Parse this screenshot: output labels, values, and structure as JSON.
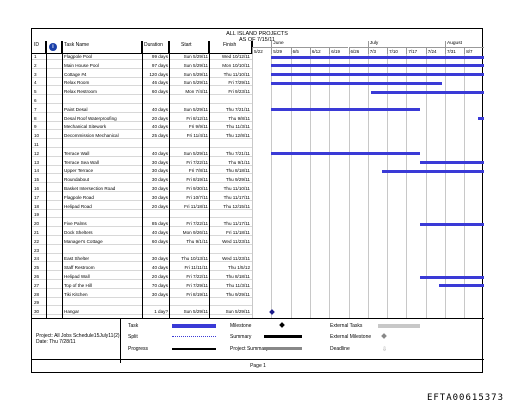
{
  "header": {
    "title": "ALL ISLAND PROJECTS",
    "subtitle": "AS OF 7/15/11"
  },
  "columns": {
    "id": "ID",
    "info": "i",
    "task": "Task Name",
    "duration": "Duration",
    "start": "Start",
    "finish": "Finish"
  },
  "months": [
    "June",
    "July",
    "August"
  ],
  "weeks": [
    "5/22",
    "5/29",
    "6/5",
    "6/12",
    "6/19",
    "6/26",
    "7/3",
    "7/10",
    "7/17",
    "7/24",
    "7/31",
    "8/7"
  ],
  "rows": [
    {
      "id": "1",
      "name": "Flagpole Pool",
      "duration": "99 days",
      "start": "Sun 5/29/11",
      "finish": "Wed 10/12/11"
    },
    {
      "id": "2",
      "name": "Main House Pool",
      "duration": "97 days",
      "start": "Sun 5/29/11",
      "finish": "Mon 10/10/11"
    },
    {
      "id": "3",
      "name": "Cottage #4",
      "duration": "120 days",
      "start": "Sun 5/29/11",
      "finish": "Thu 11/10/11"
    },
    {
      "id": "4",
      "name": "Relax Room",
      "duration": "46 days",
      "start": "Sun 5/29/11",
      "finish": "Fri 7/29/11"
    },
    {
      "id": "5",
      "name": "Relax Restroom",
      "duration": "60 days",
      "start": "Mon 7/4/11",
      "finish": "Fri 9/23/11"
    },
    {
      "id": "6",
      "name": "",
      "duration": "",
      "start": "",
      "finish": ""
    },
    {
      "id": "7",
      "name": "Paint Desal",
      "duration": "40 days",
      "start": "Sun 5/29/11",
      "finish": "Thu 7/21/11"
    },
    {
      "id": "8",
      "name": "Desal Roof Waterproofing",
      "duration": "20 days",
      "start": "Fri 8/12/11",
      "finish": "Thu 9/8/11"
    },
    {
      "id": "9",
      "name": "Mechanical Sitework",
      "duration": "40 days",
      "start": "Fri 9/9/11",
      "finish": "Thu 11/3/11"
    },
    {
      "id": "10",
      "name": "Decommission Mechanical",
      "duration": "25 days",
      "start": "Fri 11/4/11",
      "finish": "Thu 12/8/11"
    },
    {
      "id": "11",
      "name": "",
      "duration": "",
      "start": "",
      "finish": ""
    },
    {
      "id": "12",
      "name": "Terrace Wall",
      "duration": "40 days",
      "start": "Sun 5/29/11",
      "finish": "Thu 7/21/11"
    },
    {
      "id": "13",
      "name": "Terrace Sea Wall",
      "duration": "30 days",
      "start": "Fri 7/22/11",
      "finish": "Thu 9/1/11"
    },
    {
      "id": "14",
      "name": "Upper Terrace",
      "duration": "30 days",
      "start": "Fri 7/8/11",
      "finish": "Thu 8/18/11"
    },
    {
      "id": "15",
      "name": "Roundabout",
      "duration": "30 days",
      "start": "Fri 8/19/11",
      "finish": "Thu 9/29/11"
    },
    {
      "id": "16",
      "name": "Basket Intersection Road",
      "duration": "30 days",
      "start": "Fri 9/30/11",
      "finish": "Thu 11/10/11"
    },
    {
      "id": "17",
      "name": "Flagpole Road",
      "duration": "30 days",
      "start": "Fri 10/7/11",
      "finish": "Thu 11/17/11"
    },
    {
      "id": "18",
      "name": "Helipad Road",
      "duration": "20 days",
      "start": "Fri 11/18/11",
      "finish": "Thu 12/15/11"
    },
    {
      "id": "19",
      "name": "",
      "duration": "",
      "start": "",
      "finish": ""
    },
    {
      "id": "20",
      "name": "Five Palms",
      "duration": "85 days",
      "start": "Fri 7/22/11",
      "finish": "Thu 11/17/11"
    },
    {
      "id": "21",
      "name": "Dock Shelters",
      "duration": "40 days",
      "start": "Mon 9/26/11",
      "finish": "Fri 11/18/11"
    },
    {
      "id": "22",
      "name": "Manager's Cottage",
      "duration": "60 days",
      "start": "Thu 9/1/11",
      "finish": "Wed 11/23/11"
    },
    {
      "id": "23",
      "name": "",
      "duration": "",
      "start": "",
      "finish": ""
    },
    {
      "id": "24",
      "name": "East Shelter",
      "duration": "30 days",
      "start": "Thu 10/13/11",
      "finish": "Wed 11/23/11"
    },
    {
      "id": "25",
      "name": "Staff Restroom",
      "duration": "40 days",
      "start": "Fri 11/11/11",
      "finish": "Thu 1/5/12"
    },
    {
      "id": "26",
      "name": "Helipad Wall",
      "duration": "20 days",
      "start": "Fri 7/22/11",
      "finish": "Thu 8/18/11"
    },
    {
      "id": "27",
      "name": "Top of the Hill",
      "duration": "70 days",
      "start": "Fri 7/29/11",
      "finish": "Thu 11/3/11"
    },
    {
      "id": "28",
      "name": "Tiki Kitchen",
      "duration": "30 days",
      "start": "Fri 8/19/11",
      "finish": "Thu 9/29/11"
    },
    {
      "id": "29",
      "name": "",
      "duration": "",
      "start": "",
      "finish": ""
    },
    {
      "id": "30",
      "name": "Hangar",
      "duration": "1 day?",
      "start": "Sun 5/29/11",
      "finish": "Sun 5/29/11"
    }
  ],
  "legend": {
    "project": "Project: All Jobs Schedule15July11(2)",
    "date": "Date: Thu 7/28/11",
    "task": "Task",
    "split": "Split",
    "progress": "Progress",
    "milestone": "Milestone",
    "summary": "Summary",
    "project_summary": "Project Summary",
    "external_tasks": "External Tasks",
    "external_milestone": "External Milestone",
    "deadline": "Deadline"
  },
  "footer": {
    "page": "Page 1"
  },
  "stamp": "EFTA00615373",
  "colors": {
    "bar": "#3a3ad6",
    "milestone": "#1c1c8c"
  }
}
